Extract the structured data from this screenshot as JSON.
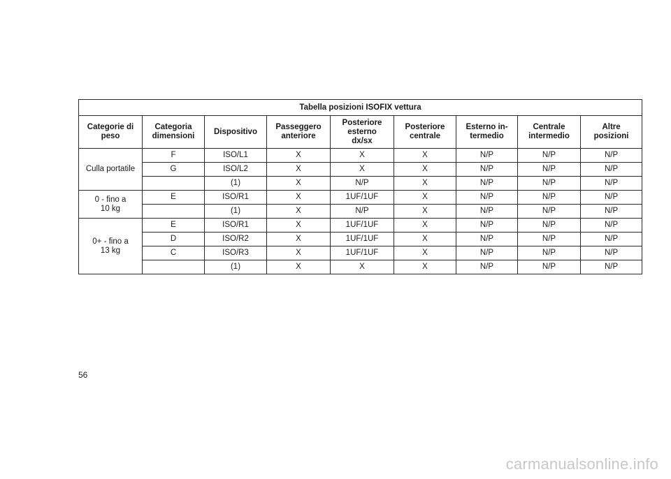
{
  "table": {
    "title": "Tabella posizioni ISOFIX vettura",
    "headers": [
      [
        "Categorie di",
        "peso"
      ],
      [
        "Categoria",
        "dimensioni"
      ],
      [
        "Dispositivo"
      ],
      [
        "Passeggero",
        "anteriore"
      ],
      [
        "Posteriore",
        "esterno",
        "dx/sx"
      ],
      [
        "Posteriore",
        "centrale"
      ],
      [
        "Esterno in-",
        "termedio"
      ],
      [
        "Centrale",
        "intermedio"
      ],
      [
        "Altre",
        "posizioni"
      ]
    ],
    "groups": [
      {
        "label": [
          "Culla portatile"
        ],
        "rows": [
          [
            "F",
            "ISO/L1",
            "X",
            "X",
            "X",
            "N/P",
            "N/P",
            "N/P"
          ],
          [
            "G",
            "ISO/L2",
            "X",
            "X",
            "X",
            "N/P",
            "N/P",
            "N/P"
          ],
          [
            "",
            "(1)",
            "X",
            "N/P",
            "X",
            "N/P",
            "N/P",
            "N/P"
          ]
        ]
      },
      {
        "label": [
          "0 - fino a",
          "10 kg"
        ],
        "rows": [
          [
            "E",
            "ISO/R1",
            "X",
            "1UF/1UF",
            "X",
            "N/P",
            "N/P",
            "N/P"
          ],
          [
            "",
            "(1)",
            "X",
            "N/P",
            "X",
            "N/P",
            "N/P",
            "N/P"
          ]
        ]
      },
      {
        "label": [
          "0+ - fino a",
          "13 kg"
        ],
        "rows": [
          [
            "E",
            "ISO/R1",
            "X",
            "1UF/1UF",
            "X",
            "N/P",
            "N/P",
            "N/P"
          ],
          [
            "D",
            "ISO/R2",
            "X",
            "1UF/1UF",
            "X",
            "N/P",
            "N/P",
            "N/P"
          ],
          [
            "C",
            "ISO/R3",
            "X",
            "1UF/1UF",
            "X",
            "N/P",
            "N/P",
            "N/P"
          ],
          [
            "",
            "(1)",
            "X",
            "X",
            "X",
            "N/P",
            "N/P",
            "N/P"
          ]
        ]
      }
    ]
  },
  "page_number": "56",
  "watermark": "carmanualsonline.info"
}
